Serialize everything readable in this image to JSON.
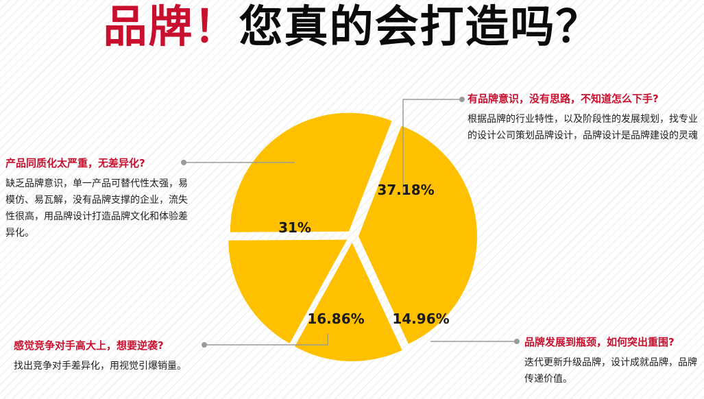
{
  "title": {
    "part1": "品牌！",
    "part2": "您真的会打造吗？"
  },
  "colors": {
    "slice": "#ffc000",
    "title_red": "#c8102e",
    "question_red": "#c8102e",
    "leader": "#9a9a9a"
  },
  "chart_data": {
    "type": "pie",
    "exploded": true,
    "slices": [
      {
        "label": "37.18%",
        "value": 37.18
      },
      {
        "label": "14.96%",
        "value": 14.96
      },
      {
        "label": "16.86%",
        "value": 16.86
      },
      {
        "label": "31%",
        "value": 31.0
      }
    ]
  },
  "callouts": {
    "top": {
      "question": "有品牌意识，没有思路，不知道怎么下手?",
      "description": "根据品牌的行业特性，以及阶段性的发展规划，找专业的设计公司策划品牌设计，品牌设计是品牌建设的灵魂"
    },
    "left": {
      "question": "产品同质化太严重，无差异化?",
      "description": "缺乏品牌意识，单一产品可替代性太强，易模仿、易瓦解，没有品牌支撑的企业，流失性很高，用品牌设计打造品牌文化和体验差异化。"
    },
    "bottom_left": {
      "question": "感觉竞争对手高大上，想要逆袭?",
      "description": "找出竞争对手差异化，用视觉引爆销量。"
    },
    "bottom_right": {
      "question": "品牌发展到瓶颈，如何突出重围?",
      "description": "迭代更新升级品牌，设计成就品牌，品牌传递价值。"
    }
  }
}
